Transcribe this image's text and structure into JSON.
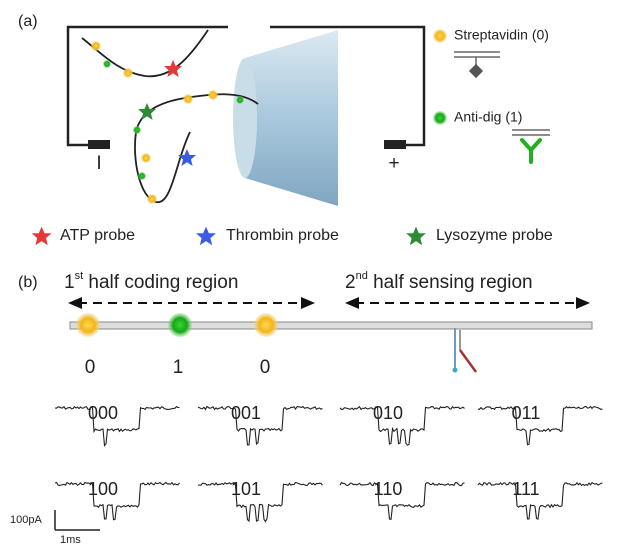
{
  "panel_a": {
    "label": "(a)",
    "electrodes": {
      "negative": "I",
      "positive": "+"
    },
    "legend": {
      "streptavidin": "Streptavidin (0)",
      "anti_dig": "Anti-dig (1)"
    },
    "probes": [
      "ATP probe",
      "Thrombin probe",
      "Lysozyme probe"
    ]
  },
  "panel_b": {
    "label": "(b)",
    "coding_region": {
      "ordinal": "1",
      "suffix": "st",
      "text": " half coding region"
    },
    "sensing_region": {
      "ordinal": "2",
      "suffix": "nd",
      "text": " half sensing region"
    },
    "bits": [
      "0",
      "1",
      "0"
    ],
    "traces": [
      "000",
      "001",
      "010",
      "011",
      "100",
      "101",
      "110",
      "111"
    ],
    "scale": {
      "current": "100pA",
      "time": "1ms"
    }
  }
}
